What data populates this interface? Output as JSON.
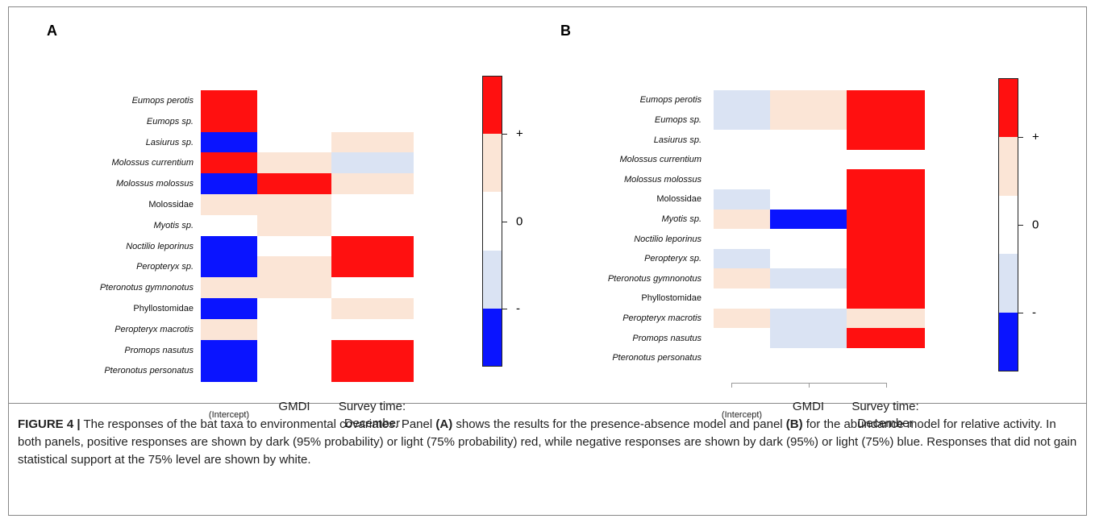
{
  "panels": [
    {
      "letter": "A",
      "rows": [
        {
          "label": "Eumops perotis",
          "italic": true,
          "cells": [
            2,
            0,
            0
          ]
        },
        {
          "label": "Eumops sp.",
          "italic": true,
          "cells": [
            2,
            0,
            0
          ]
        },
        {
          "label": "Lasiurus sp.",
          "italic": true,
          "cells": [
            -2,
            0,
            1
          ]
        },
        {
          "label": "Molossus currentium",
          "italic": true,
          "cells": [
            2,
            1,
            -1
          ]
        },
        {
          "label": "Molossus molossus",
          "italic": true,
          "cells": [
            -2,
            2,
            1
          ]
        },
        {
          "label": "Molossidae",
          "italic": false,
          "cells": [
            1,
            1,
            0
          ]
        },
        {
          "label": "Myotis sp.",
          "italic": true,
          "cells": [
            0,
            1,
            0
          ]
        },
        {
          "label": "Noctilio leporinus",
          "italic": true,
          "cells": [
            -2,
            0,
            2
          ]
        },
        {
          "label": "Peropteryx sp.",
          "italic": true,
          "cells": [
            -2,
            1,
            2
          ]
        },
        {
          "label": "Pteronotus gymnonotus",
          "italic": true,
          "cells": [
            1,
            1,
            0
          ]
        },
        {
          "label": "Phyllostomidae",
          "italic": false,
          "cells": [
            -2,
            0,
            1
          ]
        },
        {
          "label": "Peropteryx macrotis",
          "italic": true,
          "cells": [
            1,
            0,
            0
          ]
        },
        {
          "label": "Promops nasutus",
          "italic": true,
          "cells": [
            -2,
            0,
            2
          ]
        },
        {
          "label": "Pteronotus personatus",
          "italic": true,
          "cells": [
            -2,
            0,
            2
          ]
        }
      ],
      "columns": [
        "(Intercept)",
        "GMDI",
        "Survey time: December"
      ]
    },
    {
      "letter": "B",
      "rows": [
        {
          "label": "Eumops perotis",
          "italic": true,
          "cells": [
            -1,
            1,
            2
          ]
        },
        {
          "label": "Eumops sp.",
          "italic": true,
          "cells": [
            -1,
            1,
            2
          ]
        },
        {
          "label": "Lasiurus sp.",
          "italic": true,
          "cells": [
            0,
            0,
            2
          ]
        },
        {
          "label": "Molossus currentium",
          "italic": true,
          "cells": [
            0,
            0,
            0
          ]
        },
        {
          "label": "Molossus molossus",
          "italic": true,
          "cells": [
            0,
            0,
            2
          ]
        },
        {
          "label": "Molossidae",
          "italic": false,
          "cells": [
            -1,
            0,
            2
          ]
        },
        {
          "label": "Myotis sp.",
          "italic": true,
          "cells": [
            1,
            -2,
            2
          ]
        },
        {
          "label": "Noctilio leporinus",
          "italic": true,
          "cells": [
            0,
            0,
            2
          ]
        },
        {
          "label": "Peropteryx sp.",
          "italic": true,
          "cells": [
            -1,
            0,
            2
          ]
        },
        {
          "label": "Pteronotus gymnonotus",
          "italic": true,
          "cells": [
            1,
            -1,
            2
          ]
        },
        {
          "label": "Phyllostomidae",
          "italic": false,
          "cells": [
            0,
            0,
            2
          ]
        },
        {
          "label": "Peropteryx macrotis",
          "italic": true,
          "cells": [
            1,
            -1,
            1
          ]
        },
        {
          "label": "Promops nasutus",
          "italic": true,
          "cells": [
            0,
            -1,
            2
          ]
        },
        {
          "label": "Pteronotus personatus",
          "italic": true,
          "cells": [
            0,
            0,
            0
          ]
        }
      ],
      "columns": [
        "(Intercept)",
        "GMDI",
        "Survey time: December"
      ]
    }
  ],
  "colorbar": {
    "levels": [
      {
        "value": 2,
        "color": "#ff1010"
      },
      {
        "value": 1,
        "color": "#fbe5d6"
      },
      {
        "value": 0,
        "color": "#ffffff"
      },
      {
        "value": -1,
        "color": "#dae3f3"
      },
      {
        "value": -2,
        "color": "#0a14ff"
      }
    ],
    "lim": [
      -2.5,
      2.5
    ],
    "ticks": [
      {
        "value": 1.5,
        "label": "+"
      },
      {
        "value": 0,
        "label": "0"
      },
      {
        "value": -1.5,
        "label": "-"
      }
    ]
  },
  "caption": {
    "label": "FIGURE 4 |",
    "segments": [
      {
        "text": " The responses of the bat taxa to environmental covariates. Panel ",
        "bold": false
      },
      {
        "text": "(A)",
        "bold": true
      },
      {
        "text": " shows the results for the presence-absence model and panel ",
        "bold": false
      },
      {
        "text": "(B)",
        "bold": true
      },
      {
        "text": " for the abundance model for relative activity. In both panels, positive responses are shown by dark (95% probability) or light (75% probability) red, while negative responses are shown by dark (95%) or light (75%) blue. Responses that did not gain statistical support at the 75% level are shown by white.",
        "bold": false
      }
    ]
  }
}
